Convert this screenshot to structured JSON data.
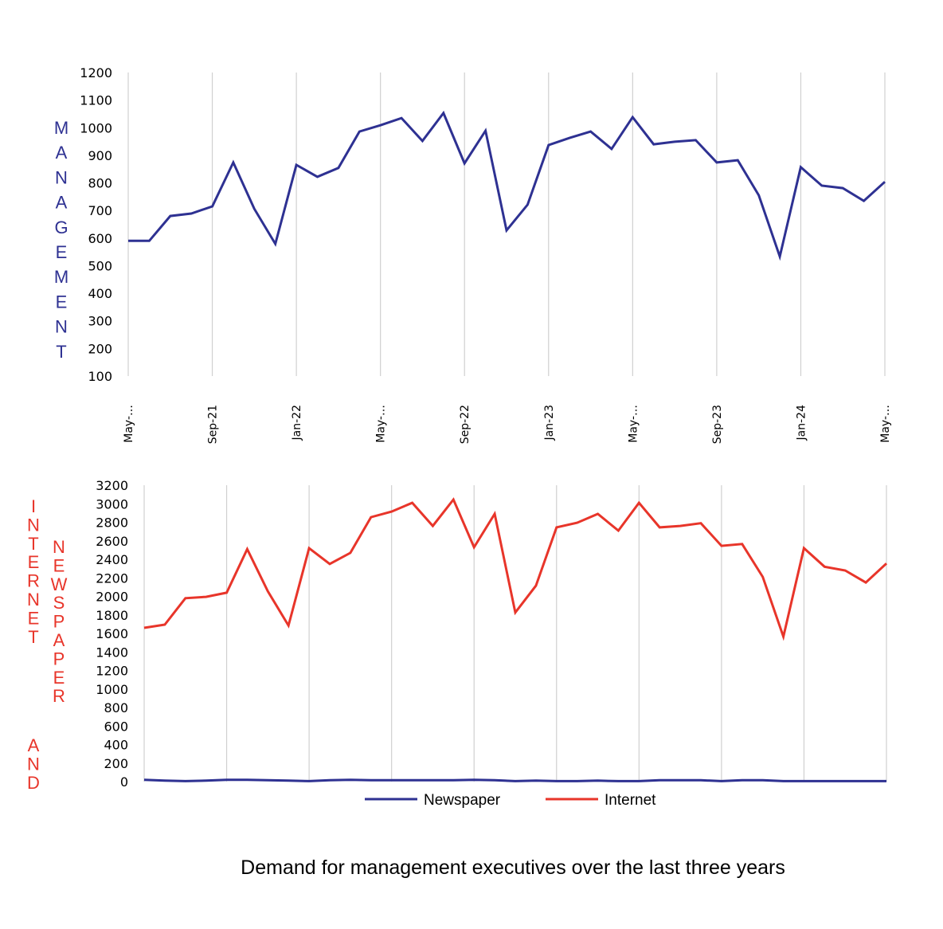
{
  "colors": {
    "management": "#2e3192",
    "newspaper": "#2e3192",
    "internet": "#e8352a",
    "grid": "#d0d0d0"
  },
  "chart_data": [
    {
      "type": "line",
      "title": "",
      "ylabel": "MANAGEMENT",
      "ylabel_color": "#2e3192",
      "xlabel": "",
      "ylim": [
        100,
        1200
      ],
      "yticks": [
        100,
        200,
        300,
        400,
        500,
        600,
        700,
        800,
        900,
        1000,
        1100,
        1200
      ],
      "xtick_labels": [
        "May-…",
        "Sep-21",
        "Jan-22",
        "May-…",
        "Sep-22",
        "Jan-23",
        "May-…",
        "Sep-23",
        "Jan-24",
        "May-…"
      ],
      "grid": "vertical",
      "x": [
        "May-21",
        "Jun-21",
        "Jul-21",
        "Aug-21",
        "Sep-21",
        "Oct-21",
        "Nov-21",
        "Dec-21",
        "Jan-22",
        "Feb-22",
        "Mar-22",
        "Apr-22",
        "May-22",
        "Jun-22",
        "Jul-22",
        "Aug-22",
        "Sep-22",
        "Oct-22",
        "Nov-22",
        "Dec-22",
        "Jan-23",
        "Feb-23",
        "Mar-23",
        "Apr-23",
        "May-23",
        "Jun-23",
        "Jul-23",
        "Aug-23",
        "Sep-23",
        "Oct-23",
        "Nov-23",
        "Dec-23",
        "Jan-24",
        "Feb-24",
        "Mar-24",
        "Apr-24",
        "May-24"
      ],
      "series": [
        {
          "name": "Management",
          "color": "#2e3192",
          "values": [
            590,
            590,
            680,
            689,
            715,
            874,
            706,
            579,
            865,
            822,
            854,
            986,
            1009,
            1035,
            952,
            1053,
            871,
            989,
            628,
            721,
            937,
            963,
            986,
            923,
            1038,
            940,
            949,
            955,
            874,
            882,
            755,
            533,
            857,
            790,
            781,
            735,
            804
          ]
        }
      ]
    },
    {
      "type": "line",
      "title": "Demand for management executives over the last three years",
      "ylabel_left": "INTERNET AND",
      "ylabel_right": "NEWSPAPER",
      "ylabel_color": "#e8352a",
      "xlabel": "",
      "ylim": [
        0,
        3200
      ],
      "yticks": [
        0,
        200,
        400,
        600,
        800,
        1000,
        1200,
        1400,
        1600,
        1800,
        2000,
        2200,
        2400,
        2600,
        2800,
        3000,
        3200
      ],
      "grid": "vertical",
      "legend": "bottom",
      "x": [
        "May-21",
        "Jun-21",
        "Jul-21",
        "Aug-21",
        "Sep-21",
        "Oct-21",
        "Nov-21",
        "Dec-21",
        "Jan-22",
        "Feb-22",
        "Mar-22",
        "Apr-22",
        "May-22",
        "Jun-22",
        "Jul-22",
        "Aug-22",
        "Sep-22",
        "Oct-22",
        "Nov-22",
        "Dec-22",
        "Jan-23",
        "Feb-23",
        "Mar-23",
        "Apr-23",
        "May-23",
        "Jun-23",
        "Jul-23",
        "Aug-23",
        "Sep-23",
        "Oct-23",
        "Nov-23",
        "Dec-23",
        "Jan-24",
        "Feb-24",
        "Mar-24",
        "Apr-24",
        "May-24"
      ],
      "series": [
        {
          "name": "Newspaper",
          "color": "#2e3192",
          "values": [
            20,
            10,
            5,
            10,
            20,
            20,
            15,
            10,
            5,
            15,
            20,
            15,
            15,
            15,
            15,
            15,
            20,
            15,
            5,
            10,
            5,
            5,
            10,
            5,
            5,
            15,
            15,
            15,
            5,
            15,
            15,
            5,
            5,
            5,
            5,
            5,
            5
          ]
        },
        {
          "name": "Internet",
          "color": "#e8352a",
          "values": [
            1660,
            1695,
            1980,
            1995,
            2040,
            2510,
            2055,
            1685,
            2520,
            2350,
            2470,
            2855,
            2915,
            3010,
            2760,
            3045,
            2530,
            2890,
            1825,
            2115,
            2745,
            2795,
            2890,
            2710,
            3010,
            2745,
            2760,
            2790,
            2545,
            2565,
            2210,
            1565,
            2520,
            2320,
            2280,
            2150,
            2355
          ]
        }
      ]
    }
  ],
  "labels": {
    "top_ylabel": "MANAGEMENT",
    "bottom_ylabel_left": "INTERNET AND",
    "bottom_ylabel_right": "NEWSPAPER",
    "legend_newspaper": "Newspaper",
    "legend_internet": "Internet",
    "title": "Demand for management executives over the last three years"
  }
}
